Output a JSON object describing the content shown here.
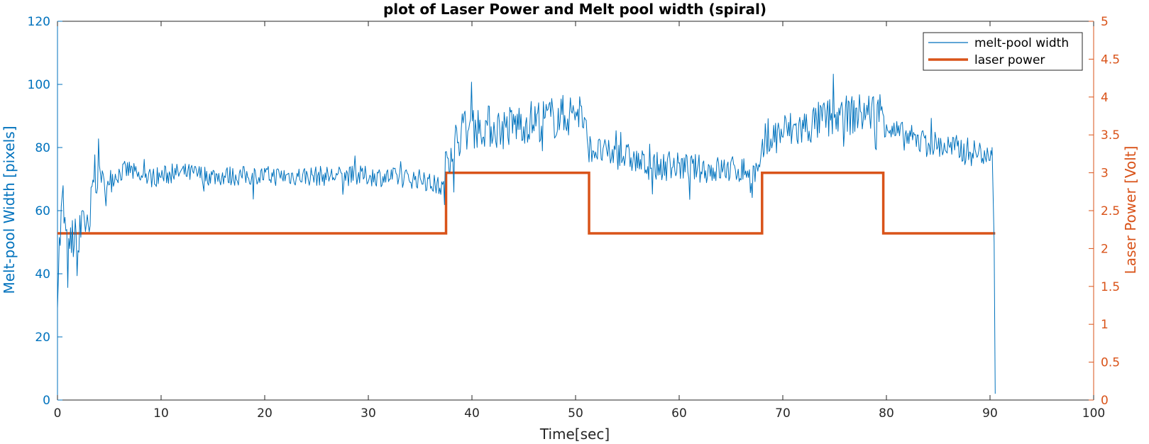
{
  "chart_data": {
    "type": "line",
    "title": "plot of Laser Power and Melt pool width (spiral)",
    "xlabel": "Time[sec]",
    "ylabel_left": "Melt-pool Width [pixels]",
    "ylabel_right": "Laser Power [Volt]",
    "xlim": [
      0,
      100
    ],
    "ylim_left": [
      0,
      120
    ],
    "ylim_right": [
      0,
      5
    ],
    "x_ticks": [
      "0",
      "10",
      "20",
      "30",
      "40",
      "50",
      "60",
      "70",
      "80",
      "90",
      "100"
    ],
    "y_left_ticks": [
      "0",
      "20",
      "40",
      "60",
      "80",
      "100",
      "120"
    ],
    "y_right_ticks": [
      "0",
      "0.5",
      "1",
      "1.5",
      "2",
      "2.5",
      "3",
      "3.5",
      "4",
      "4.5",
      "5"
    ],
    "grid": false,
    "legend_position": "top-right",
    "colors": {
      "width": "#0072bd",
      "power": "#d95319",
      "axis": "#262626"
    },
    "series": [
      {
        "name": "melt-pool width",
        "axis": "left",
        "x": [
          0,
          0.5,
          1,
          1.5,
          2,
          2.5,
          3,
          3.5,
          4,
          4.5,
          5,
          6,
          7,
          8,
          10,
          12,
          15,
          20,
          25,
          30,
          35,
          37.3,
          37.6,
          39,
          41,
          43,
          45,
          47,
          49,
          50.5,
          51.2,
          53,
          55,
          57,
          60,
          63,
          66,
          67.8,
          68.2,
          70,
          72,
          74,
          76,
          78,
          79.5,
          80.5,
          83,
          86,
          89,
          90.2,
          90.4,
          90.5
        ],
        "y": [
          38,
          64,
          42,
          52,
          46,
          62,
          48,
          72,
          74,
          68,
          70,
          72,
          73,
          70,
          71,
          72,
          71,
          71,
          71,
          71,
          70,
          67,
          78,
          85,
          87,
          86,
          88,
          89,
          90,
          92,
          80,
          78,
          77,
          74,
          74,
          73,
          73,
          72,
          81,
          85,
          86,
          89,
          90,
          91,
          92,
          85,
          82,
          80,
          78,
          80,
          50,
          2
        ]
      },
      {
        "name": "laser power",
        "axis": "right",
        "x": [
          0,
          37.5,
          37.5,
          51.3,
          51.3,
          68,
          68,
          79.7,
          79.7,
          90.5
        ],
        "y": [
          2.2,
          2.2,
          3.0,
          3.0,
          2.2,
          2.2,
          3.0,
          3.0,
          2.2,
          2.2
        ]
      }
    ]
  }
}
